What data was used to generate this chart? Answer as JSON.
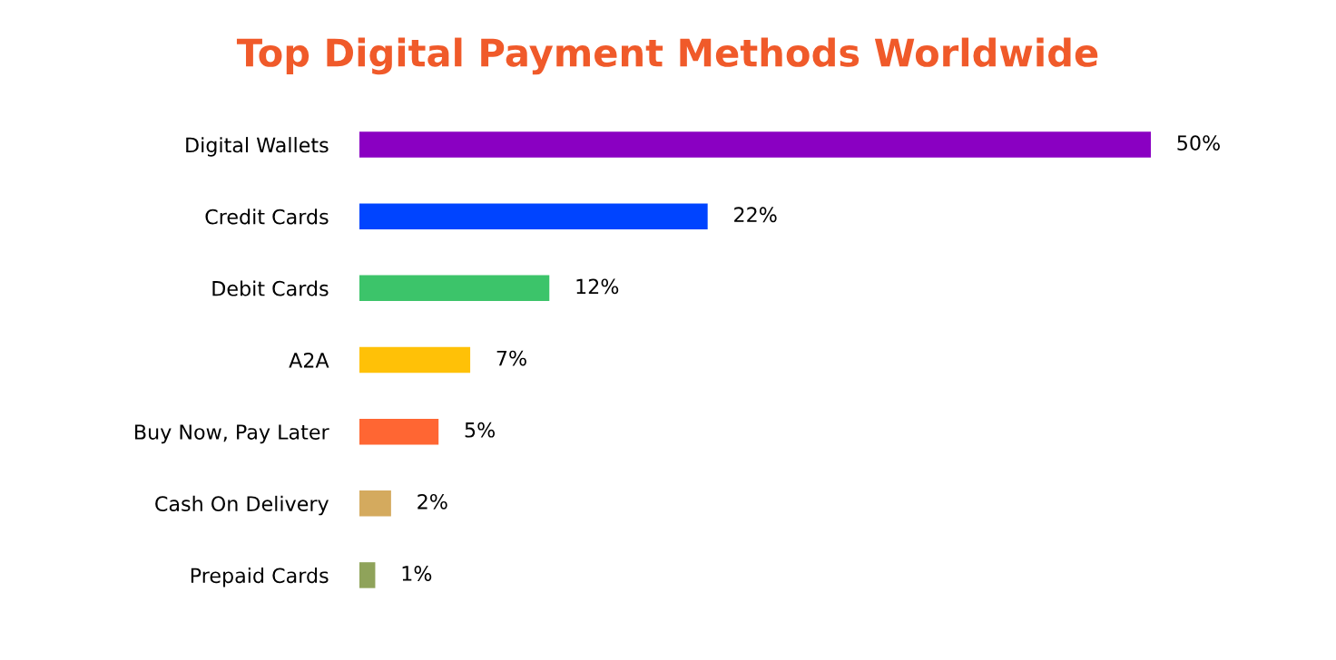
{
  "chart_data": {
    "type": "bar",
    "orientation": "horizontal",
    "title": "Top Digital Payment Methods Worldwide",
    "categories": [
      "Digital Wallets",
      "Credit Cards",
      "Debit Cards",
      "A2A",
      "Buy Now, Pay Later",
      "Cash On Delivery",
      "Prepaid Cards"
    ],
    "values": [
      50,
      22,
      12,
      7,
      5,
      2,
      1
    ],
    "colors": [
      "#8a00c2",
      "#0044ff",
      "#3cc46a",
      "#ffc107",
      "#ff6633",
      "#d4aa5e",
      "#8fa35a"
    ],
    "value_labels": [
      "50%",
      "22%",
      "12%",
      "7%",
      "5%",
      "2%",
      "1%"
    ],
    "tick_labels": "y",
    "grid": false,
    "legend": false
  }
}
